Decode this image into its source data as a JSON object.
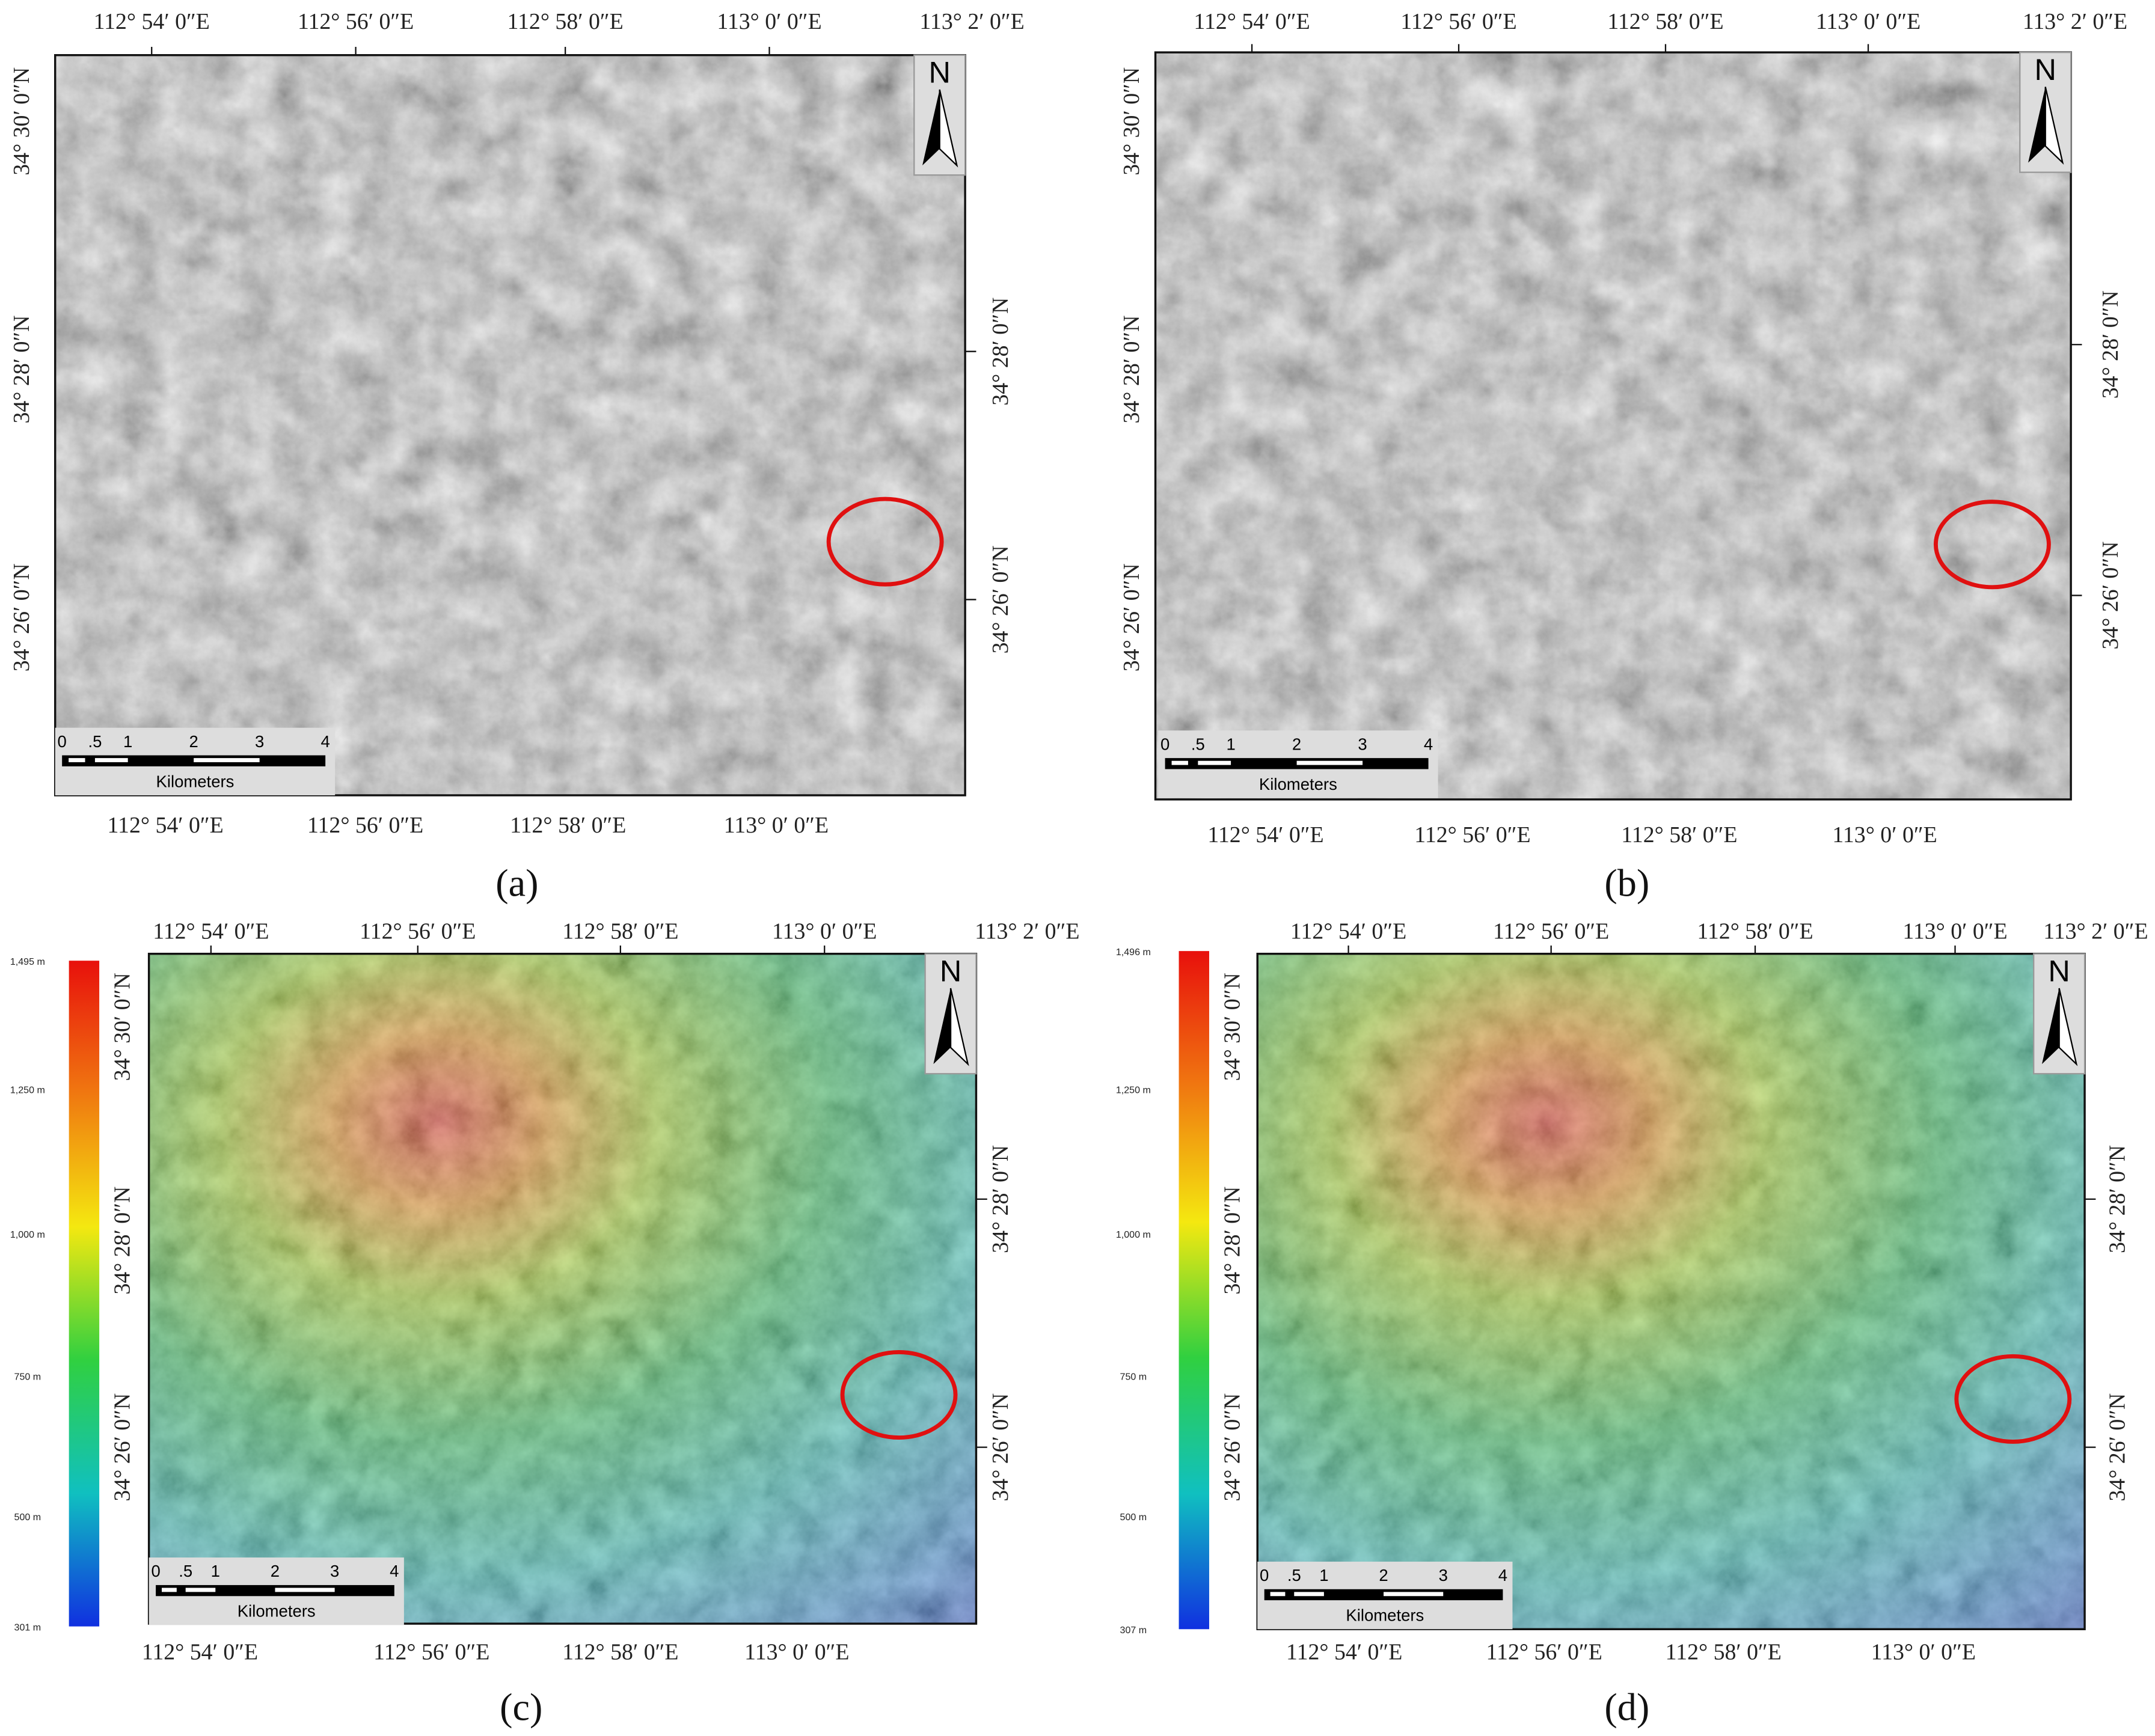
{
  "panels": [
    {
      "label": "(a)",
      "top_labels": [
        "112°  54′ 0″E",
        "112°  56′ 0″E",
        "112°  58′ 0″E",
        "113°  0′ 0″E",
        "113°  2′ 0″E"
      ],
      "bottom_labels": [
        "112°  54′ 0″E",
        "112°  56′ 0″E",
        "112°  58′ 0″E",
        "113°  0′ 0″E"
      ],
      "left_labels": [
        "34°  30′ 0″N",
        "34°  28′ 0″N",
        "34°  26′ 0″N"
      ],
      "right_labels": [
        "34°  28′ 0″N",
        "34°  26′ 0″N"
      ],
      "north": "N",
      "scale_ticks": [
        "0",
        ".5",
        "1",
        "2",
        "3",
        "4"
      ],
      "scale_unit": "Kilometers"
    },
    {
      "label": "(b)",
      "top_labels": [
        "112°  54′ 0″E",
        "112°  56′ 0″E",
        "112°  58′ 0″E",
        "113°  0′ 0″E",
        "113°  2′ 0″E"
      ],
      "bottom_labels": [
        "112°  54′ 0″E",
        "112°  56′ 0″E",
        "112°  58′ 0″E",
        "113°  0′ 0″E"
      ],
      "left_labels": [
        "34°  30′ 0″N",
        "34°  28′ 0″N",
        "34°  26′ 0″N"
      ],
      "right_labels": [
        "34°  28′ 0″N",
        "34°  26′ 0″N"
      ],
      "north": "N",
      "scale_ticks": [
        "0",
        ".5",
        "1",
        "2",
        "3",
        "4"
      ],
      "scale_unit": "Kilometers"
    },
    {
      "label": "(c)",
      "top_labels": [
        "112°  54′ 0″E",
        "112°  56′ 0″E",
        "112°  58′ 0″E",
        "113°  0′ 0″E",
        "113°  2′ 0″E"
      ],
      "bottom_labels": [
        "112°  54′ 0″E",
        "112°  56′ 0″E",
        "112°  58′ 0″E",
        "113°  0′ 0″E"
      ],
      "left_labels": [
        "34°  30′ 0″N",
        "34°  28′ 0″N",
        "34°  26′ 0″N"
      ],
      "right_labels": [
        "34°  28′ 0″N",
        "34°  26′ 0″N"
      ],
      "north": "N",
      "scale_ticks": [
        "0",
        ".5",
        "1",
        "2",
        "3",
        "4"
      ],
      "scale_unit": "Kilometers",
      "colorbar_labels": [
        "1,495 m",
        "1,250 m",
        "1,000 m",
        "750 m",
        "500 m",
        "301 m"
      ]
    },
    {
      "label": "(d)",
      "top_labels": [
        "112°  54′ 0″E",
        "112°  56′ 0″E",
        "112°  58′ 0″E",
        "113°  0′ 0″E",
        "113°  2′ 0″E"
      ],
      "bottom_labels": [
        "112°  54′ 0″E",
        "112°  56′ 0″E",
        "112°  58′ 0″E",
        "113°  0′ 0″E"
      ],
      "left_labels": [
        "34°  30′ 0″N",
        "34°  28′ 0″N",
        "34°  26′ 0″N"
      ],
      "right_labels": [
        "34°  28′ 0″N",
        "34°  26′ 0″N"
      ],
      "north": "N",
      "scale_ticks": [
        "0",
        ".5",
        "1",
        "2",
        "3",
        "4"
      ],
      "scale_unit": "Kilometers",
      "colorbar_labels": [
        "1,496 m",
        "1,250 m",
        "1,000 m",
        "750 m",
        "500 m",
        "307 m"
      ]
    }
  ]
}
